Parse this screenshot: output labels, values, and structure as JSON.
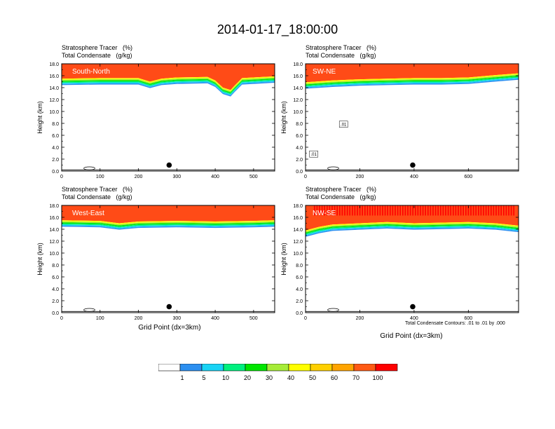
{
  "title": "2014-01-17_18:00:00",
  "panel_header": {
    "line1": "Stratosphere Tracer   (%)",
    "line2": "Total Condensate   (g/kg)"
  },
  "axes": {
    "ylabel": "Height (km)",
    "xlabel": "Grid Point (dx=3km)",
    "yticks": [
      "0.0",
      "2.0",
      "4.0",
      "6.0",
      "8.0",
      "10.0",
      "12.0",
      "14.0",
      "16.0",
      "18.0"
    ]
  },
  "footnote": "Total Condensate Contours: .01 to .01 by .000",
  "colors": {
    "stratosphere_fill": "#ff4b17",
    "bright_red": "#ff0000"
  },
  "chart_data": [
    {
      "type": "area",
      "section": "South-North",
      "xlim": [
        0,
        555
      ],
      "ylim": [
        0,
        18
      ],
      "xticks": [
        0,
        100,
        200,
        300,
        400,
        500
      ],
      "tropopause_km": [
        [
          0,
          15.5
        ],
        [
          100,
          15.6
        ],
        [
          200,
          15.6
        ],
        [
          230,
          15.0
        ],
        [
          260,
          15.5
        ],
        [
          300,
          15.7
        ],
        [
          380,
          15.8
        ],
        [
          400,
          15.2
        ],
        [
          420,
          14.0
        ],
        [
          440,
          13.6
        ],
        [
          450,
          14.3
        ],
        [
          470,
          15.6
        ],
        [
          555,
          15.9
        ]
      ],
      "marker": {
        "x": 280,
        "y": 1.0
      }
    },
    {
      "type": "area",
      "section": "SW-NE",
      "xlim": [
        0,
        785
      ],
      "ylim": [
        0,
        18
      ],
      "xticks": [
        0,
        200,
        400,
        600
      ],
      "tropopause_km": [
        [
          0,
          14.9
        ],
        [
          100,
          15.2
        ],
        [
          200,
          15.4
        ],
        [
          300,
          15.5
        ],
        [
          400,
          15.6
        ],
        [
          500,
          15.6
        ],
        [
          600,
          15.7
        ],
        [
          700,
          16.1
        ],
        [
          785,
          16.4
        ]
      ],
      "marker": {
        "x": 395,
        "y": 1.0
      },
      "contour_labels": [
        ".01",
        ".01"
      ]
    },
    {
      "type": "area",
      "section": "West-East",
      "xlim": [
        0,
        555
      ],
      "ylim": [
        0,
        18
      ],
      "xticks": [
        0,
        100,
        200,
        300,
        400,
        500
      ],
      "tropopause_km": [
        [
          0,
          15.5
        ],
        [
          100,
          15.4
        ],
        [
          150,
          15.0
        ],
        [
          200,
          15.3
        ],
        [
          300,
          15.4
        ],
        [
          400,
          15.3
        ],
        [
          500,
          15.4
        ],
        [
          555,
          15.5
        ]
      ],
      "marker": {
        "x": 280,
        "y": 1.0
      }
    },
    {
      "type": "area",
      "section": "NW-SE",
      "xlim": [
        0,
        785
      ],
      "ylim": [
        0,
        18
      ],
      "xticks": [
        0,
        200,
        400,
        600
      ],
      "tropopause_km": [
        [
          0,
          13.8
        ],
        [
          50,
          14.4
        ],
        [
          100,
          14.8
        ],
        [
          200,
          15.0
        ],
        [
          300,
          15.2
        ],
        [
          400,
          15.0
        ],
        [
          500,
          15.1
        ],
        [
          600,
          15.2
        ],
        [
          700,
          15.0
        ],
        [
          785,
          14.6
        ]
      ],
      "marker": {
        "x": 395,
        "y": 1.0
      }
    }
  ],
  "colorbar": {
    "labels": [
      "1",
      "5",
      "10",
      "20",
      "30",
      "40",
      "50",
      "60",
      "70",
      "100"
    ],
    "colors": [
      "#ffffff",
      "#2c8ff0",
      "#19d3f5",
      "#00f07f",
      "#00e600",
      "#a6ec38",
      "#ffff00",
      "#ffd000",
      "#ffa400",
      "#ff5a14",
      "#ff0000"
    ]
  }
}
